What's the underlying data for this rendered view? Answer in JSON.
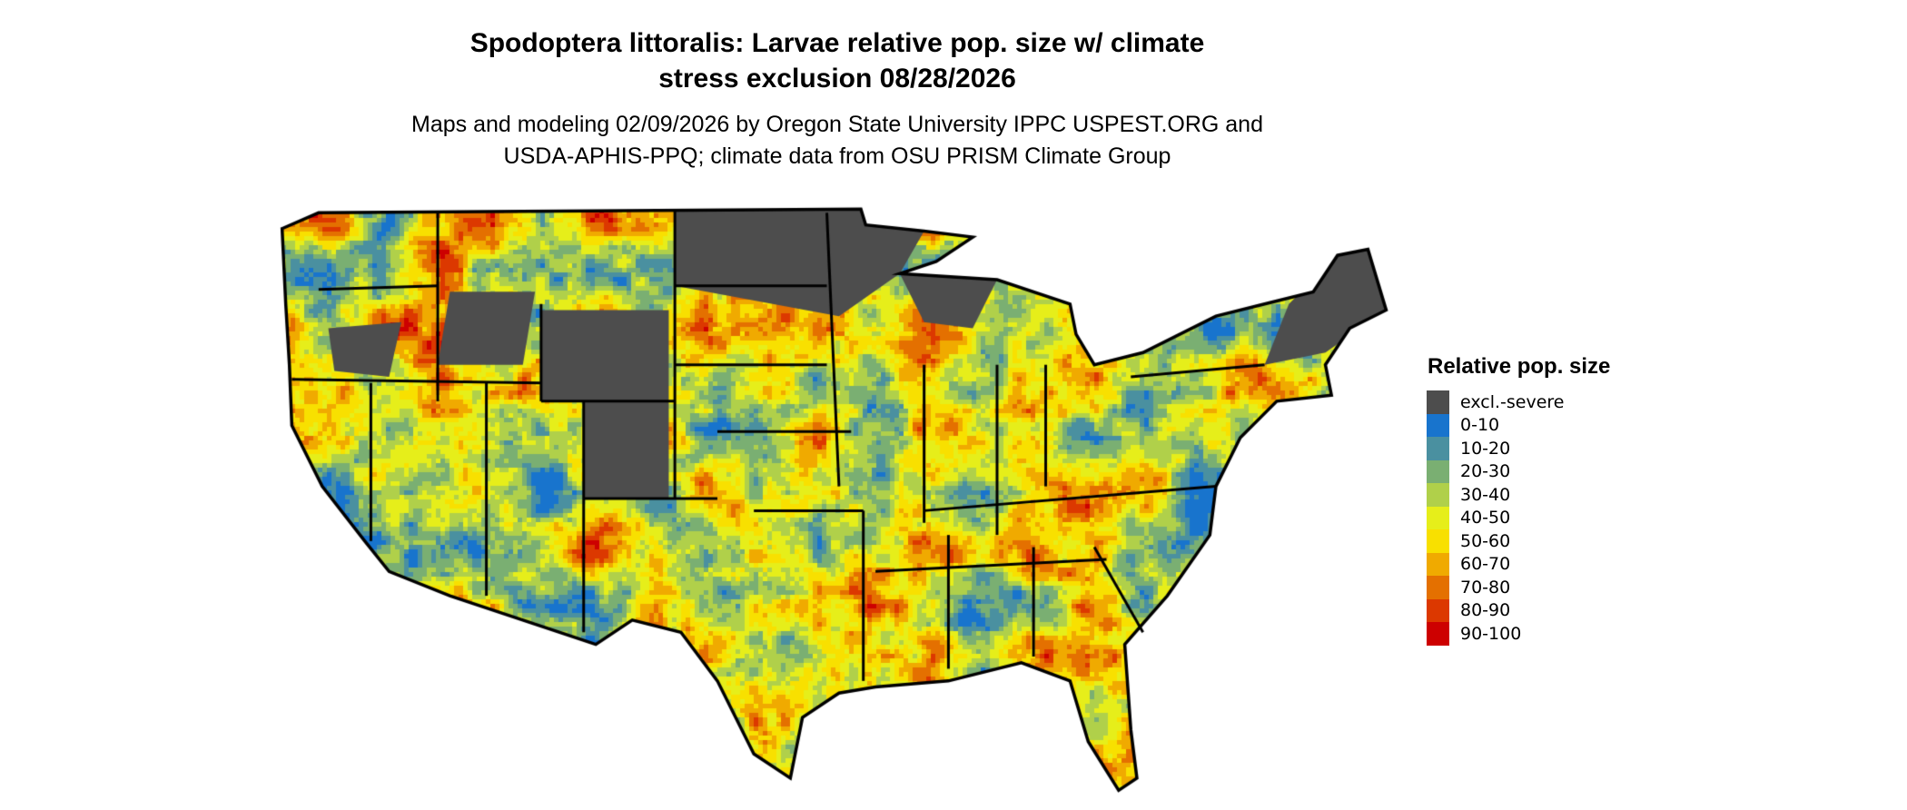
{
  "title": "Spodoptera littoralis: Larvae relative pop. size w/ climate stress exclusion 08/28/2026",
  "title_lines": [
    "Spodoptera littoralis: Larvae relative pop. size w/ climate",
    "stress exclusion 08/28/2026"
  ],
  "subtitle_lines": [
    "Maps and modeling 02/09/2026 by Oregon State University IPPC USPEST.ORG and",
    "USDA-APHIS-PPQ; climate data from OSU PRISM Climate Group"
  ],
  "map": {
    "region": "Contiguous United States",
    "boundaries": "state"
  },
  "legend": {
    "title": "Relative pop. size",
    "items": [
      {
        "label": "excl.-severe",
        "color": "#4d4d4d"
      },
      {
        "label": "0-10",
        "color": "#1874cd"
      },
      {
        "label": "10-20",
        "color": "#4a90a0"
      },
      {
        "label": "20-30",
        "color": "#7aaf72"
      },
      {
        "label": "30-40",
        "color": "#b0d04a"
      },
      {
        "label": "40-50",
        "color": "#e6ee1a"
      },
      {
        "label": "50-60",
        "color": "#f8e000"
      },
      {
        "label": "60-70",
        "color": "#f0aa00"
      },
      {
        "label": "70-80",
        "color": "#e47000"
      },
      {
        "label": "80-90",
        "color": "#dc3800"
      },
      {
        "label": "90-100",
        "color": "#cd0000"
      }
    ]
  }
}
